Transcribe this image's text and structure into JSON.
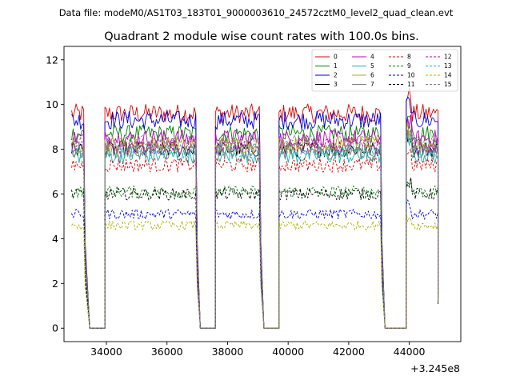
{
  "chart_data": {
    "type": "line",
    "suptitle": "Data file: modeM0/AS1T03_183T01_9000003610_24572cztM0_level2_quad_clean.evt",
    "title": "Quadrant 2 module wise count rates with 100.0s bins.",
    "xlabel": "",
    "ylabel": "",
    "x_offset_label": "+3.245e8",
    "xlim": [
      32600,
      45700
    ],
    "ylim": [
      -0.6,
      12.6
    ],
    "x_ticks": [
      34000,
      36000,
      38000,
      40000,
      42000,
      44000
    ],
    "x_tick_labels": [
      "34000",
      "36000",
      "38000",
      "40000",
      "42000",
      "44000"
    ],
    "y_ticks": [
      0,
      2,
      4,
      6,
      8,
      10,
      12
    ],
    "y_tick_labels": [
      "0",
      "2",
      "4",
      "6",
      "8",
      "10",
      "12"
    ],
    "segments": [
      {
        "on": [
          32850,
          33250
        ],
        "gap": [
          33250,
          33450
        ],
        "zero": [
          33450,
          33950
        ]
      },
      {
        "on": [
          33950,
          36950
        ],
        "gap": [
          36950,
          37100
        ],
        "zero": [
          37100,
          37600
        ]
      },
      {
        "on": [
          37600,
          39050
        ],
        "gap": [
          39050,
          39200
        ],
        "zero": [
          39200,
          39700
        ]
      },
      {
        "on": [
          39700,
          43050
        ],
        "gap": [
          43050,
          43200
        ],
        "zero": [
          43200,
          43900
        ]
      },
      {
        "on": [
          43900,
          44950
        ],
        "gap": [
          44950,
          44950
        ],
        "zero": [
          44950,
          44950
        ]
      }
    ],
    "series": [
      {
        "name": "0",
        "color": "#e00000",
        "dash": false,
        "level": 9.6
      },
      {
        "name": "1",
        "color": "#008000",
        "dash": false,
        "level": 8.7
      },
      {
        "name": "2",
        "color": "#0000e0",
        "dash": false,
        "level": 9.3
      },
      {
        "name": "3",
        "color": "#000000",
        "dash": false,
        "level": 8.0
      },
      {
        "name": "4",
        "color": "#c000c0",
        "dash": false,
        "level": 8.5
      },
      {
        "name": "5",
        "color": "#20b0b0",
        "dash": false,
        "level": 7.7
      },
      {
        "name": "6",
        "color": "#b0b000",
        "dash": false,
        "level": 8.2
      },
      {
        "name": "7",
        "color": "#808080",
        "dash": false,
        "level": 7.9
      },
      {
        "name": "8",
        "color": "#e00000",
        "dash": true,
        "level": 7.3
      },
      {
        "name": "9",
        "color": "#008000",
        "dash": true,
        "level": 6.1
      },
      {
        "name": "10",
        "color": "#0000e0",
        "dash": true,
        "level": 5.1
      },
      {
        "name": "11",
        "color": "#000000",
        "dash": true,
        "level": 6.0
      },
      {
        "name": "12",
        "color": "#c000c0",
        "dash": true,
        "level": 8.1
      },
      {
        "name": "13",
        "color": "#20b0b0",
        "dash": true,
        "level": 7.9
      },
      {
        "name": "14",
        "color": "#b0b000",
        "dash": true,
        "level": 4.6
      },
      {
        "name": "15",
        "color": "#808080",
        "dash": true,
        "level": 8.3
      }
    ]
  }
}
